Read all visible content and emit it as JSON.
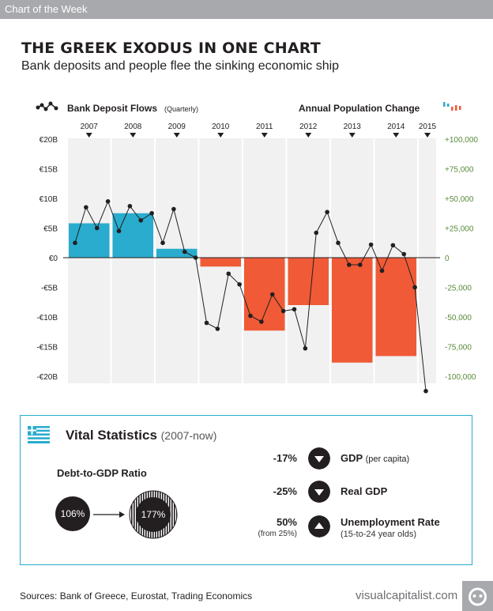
{
  "header": {
    "banner": "Chart of the Week"
  },
  "title": "THE GREEK EXODUS IN ONE CHART",
  "subtitle": "Bank deposits and people flee the sinking economic ship",
  "chart_data": {
    "type": "bar",
    "legend": {
      "line": {
        "label": "Bank Deposit Flows",
        "qualifier": "(Quarterly)"
      },
      "bars": {
        "label": "Annual Population Change"
      }
    },
    "years": [
      "2007",
      "2008",
      "2009",
      "2010",
      "2011",
      "2012",
      "2013",
      "2014",
      "2015"
    ],
    "left_axis": {
      "ticks": [
        "€20B",
        "€15B",
        "€10B",
        "€5B",
        "€0",
        "-€5B",
        "-€10B",
        "-€15B",
        "-€20B"
      ],
      "ylim": [
        -20,
        20
      ]
    },
    "right_axis": {
      "ticks": [
        "+100,000",
        "+75,000",
        "+50,000",
        "+25,000",
        "0",
        "-25,000",
        "-50,000",
        "-75,000",
        "-100,000"
      ],
      "ylim": [
        -100000,
        100000
      ]
    },
    "bar_series": {
      "years": [
        "2007",
        "2008",
        "2009",
        "2010",
        "2011",
        "2012",
        "2013",
        "2014"
      ],
      "values": [
        29000,
        37500,
        7500,
        -7500,
        -61500,
        -40000,
        -88500,
        -83000
      ]
    },
    "line_series": {
      "x": [
        2007.0,
        2007.25,
        2007.5,
        2007.75,
        2008.0,
        2008.25,
        2008.5,
        2008.75,
        2009.0,
        2009.25,
        2009.5,
        2009.75,
        2010.0,
        2010.25,
        2010.5,
        2010.75,
        2011.0,
        2011.25,
        2011.5,
        2011.75,
        2012.0,
        2012.25,
        2012.5,
        2012.75,
        2013.0,
        2013.25,
        2013.5,
        2013.75,
        2014.0,
        2014.25,
        2014.5,
        2014.75,
        2015.0
      ],
      "values": [
        2.5,
        8.5,
        5.0,
        9.5,
        4.5,
        8.7,
        6.3,
        7.5,
        2.5,
        8.2,
        1.0,
        0.0,
        -11.0,
        -12.0,
        -2.7,
        -4.5,
        -9.8,
        -10.8,
        -6.2,
        -9.0,
        -8.7,
        -15.3,
        4.2,
        7.7,
        2.5,
        -1.2,
        -1.2,
        2.2,
        -2.2,
        2.1,
        0.6,
        -5.0,
        -22.5
      ]
    },
    "colors": {
      "positive": "#29acce",
      "negative": "#f05a36",
      "line": "#231f20",
      "band": "#f1f1f2",
      "right_axis": "#5a8a3a"
    }
  },
  "vital_statistics": {
    "title": "Vital Statistics",
    "period": "(2007-now)",
    "debt_to_gdp": {
      "label": "Debt-to-GDP Ratio",
      "before": "106%",
      "after": "177%"
    },
    "stats": [
      {
        "value": "-17%",
        "sub": "",
        "direction": "down-icon",
        "label": "GDP",
        "label_note": "(per capita)",
        "sub_label": ""
      },
      {
        "value": "-25%",
        "sub": "",
        "direction": "down-icon",
        "label": "Real GDP",
        "label_note": "",
        "sub_label": ""
      },
      {
        "value": "50%",
        "sub": "(from 25%)",
        "direction": "up-icon",
        "label": "Unemployment Rate",
        "label_note": "",
        "sub_label": "(15-to-24 year olds)"
      }
    ]
  },
  "footer": {
    "sources": "Sources: Bank of Greece, Eurostat, Trading Economics",
    "brand": "visualcapitalist.com"
  }
}
